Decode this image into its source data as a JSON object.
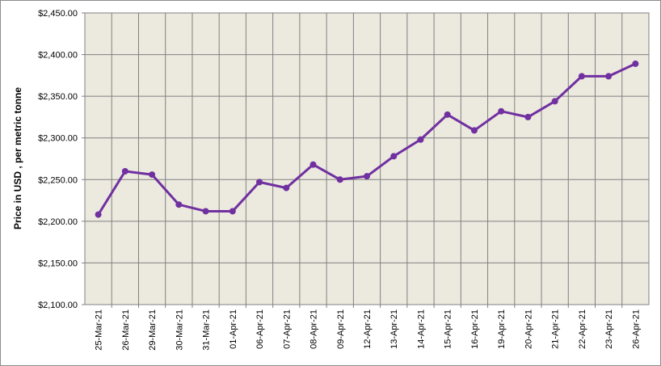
{
  "chart_data": {
    "type": "line",
    "y_label": "Price in USD , per metric tonne",
    "categories": [
      "25-Mar-21",
      "26-Mar-21",
      "29-Mar-21",
      "30-Mar-21",
      "31-Mar-21",
      "01-Apr-21",
      "06-Apr-21",
      "07-Apr-21",
      "08-Apr-21",
      "09-Apr-21",
      "12-Apr-21",
      "13-Apr-21",
      "14-Apr-21",
      "15-Apr-21",
      "16-Apr-21",
      "19-Apr-21",
      "20-Apr-21",
      "21-Apr-21",
      "22-Apr-21",
      "23-Apr-21",
      "26-Apr-21"
    ],
    "values": [
      2208,
      2260,
      2256,
      2220,
      2212,
      2212,
      2247,
      2240,
      2268,
      2250,
      2254,
      2278,
      2298,
      2328,
      2309,
      2332,
      2325,
      2344,
      2374,
      2374,
      2389
    ],
    "color": "#7030a0",
    "ylim": [
      2100,
      2450
    ],
    "yticks": [
      {
        "value": 2100,
        "label": "$2,100.00"
      },
      {
        "value": 2150,
        "label": "$2,150.00"
      },
      {
        "value": 2200,
        "label": "$2,200.00"
      },
      {
        "value": 2250,
        "label": "$2,250.00"
      },
      {
        "value": 2300,
        "label": "$2,300.00"
      },
      {
        "value": 2350,
        "label": "$2,350.00"
      },
      {
        "value": 2400,
        "label": "$2,400.00"
      },
      {
        "value": 2450,
        "label": "$2,450.00"
      }
    ],
    "grid": true
  }
}
